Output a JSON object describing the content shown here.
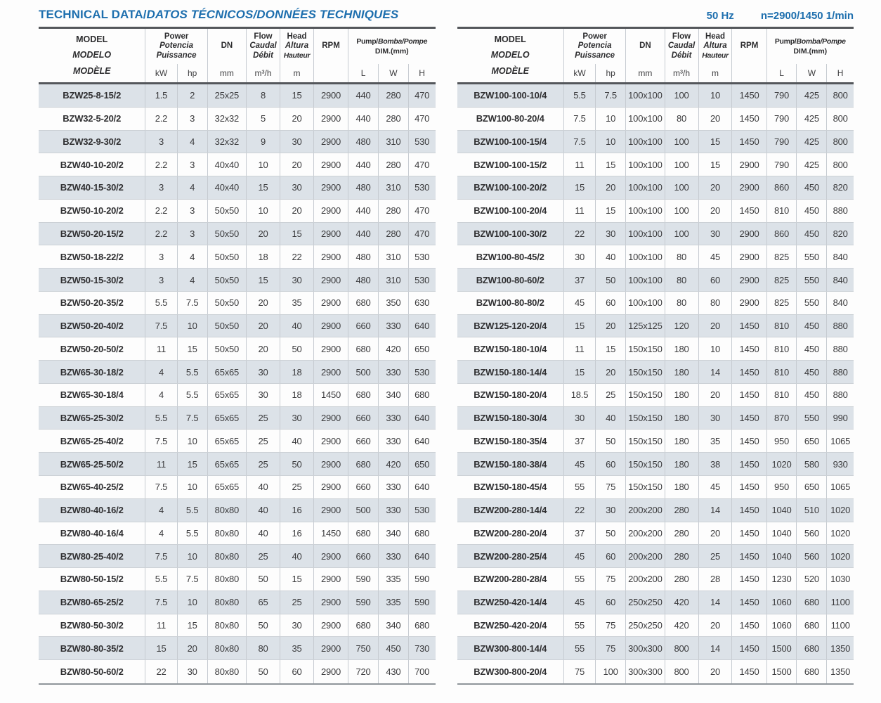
{
  "page": {
    "title_plain": "TECHNICAL DATA/",
    "title_italic": "DATOS TÉCNICOS/DONNÉES TECHNIQUES",
    "frequency": "50 Hz",
    "speed": "n=2900/1450 1/min"
  },
  "header": {
    "model": [
      "MODEL",
      "MODELO",
      "MODÈLE"
    ],
    "power": [
      "Power",
      "Potencia",
      "Puissance"
    ],
    "power_units": [
      "kW",
      "hp"
    ],
    "dn": "DN",
    "dn_unit": "mm",
    "flow": [
      "Flow",
      "Caudal",
      "Débit"
    ],
    "flow_unit": "m³/h",
    "head_col": [
      "Head",
      "Altura",
      "Hauteur"
    ],
    "head_unit": "m",
    "rpm": "RPM",
    "dim_plain": "Pump/",
    "dim_italic": "Bomba/Pompe",
    "dim_sub": "DIM.(mm)",
    "dim_units": [
      "L",
      "W",
      "H"
    ]
  },
  "colors": {
    "accent": "#1e6fae",
    "stripe": "#dce2e8"
  },
  "tables": {
    "left": {
      "rows": [
        [
          "BZW25-8-15/2",
          "1.5",
          "2",
          "25x25",
          "8",
          "15",
          "2900",
          "440",
          "280",
          "470"
        ],
        [
          "BZW32-5-20/2",
          "2.2",
          "3",
          "32x32",
          "5",
          "20",
          "2900",
          "440",
          "280",
          "470"
        ],
        [
          "BZW32-9-30/2",
          "3",
          "4",
          "32x32",
          "9",
          "30",
          "2900",
          "480",
          "310",
          "530"
        ],
        [
          "BZW40-10-20/2",
          "2.2",
          "3",
          "40x40",
          "10",
          "20",
          "2900",
          "440",
          "280",
          "470"
        ],
        [
          "BZW40-15-30/2",
          "3",
          "4",
          "40x40",
          "15",
          "30",
          "2900",
          "480",
          "310",
          "530"
        ],
        [
          "BZW50-10-20/2",
          "2.2",
          "3",
          "50x50",
          "10",
          "20",
          "2900",
          "440",
          "280",
          "470"
        ],
        [
          "BZW50-20-15/2",
          "2.2",
          "3",
          "50x50",
          "20",
          "15",
          "2900",
          "440",
          "280",
          "470"
        ],
        [
          "BZW50-18-22/2",
          "3",
          "4",
          "50x50",
          "18",
          "22",
          "2900",
          "480",
          "310",
          "530"
        ],
        [
          "BZW50-15-30/2",
          "3",
          "4",
          "50x50",
          "15",
          "30",
          "2900",
          "480",
          "310",
          "530"
        ],
        [
          "BZW50-20-35/2",
          "5.5",
          "7.5",
          "50x50",
          "20",
          "35",
          "2900",
          "680",
          "350",
          "630"
        ],
        [
          "BZW50-20-40/2",
          "7.5",
          "10",
          "50x50",
          "20",
          "40",
          "2900",
          "660",
          "330",
          "640"
        ],
        [
          "BZW50-20-50/2",
          "11",
          "15",
          "50x50",
          "20",
          "50",
          "2900",
          "680",
          "420",
          "650"
        ],
        [
          "BZW65-30-18/2",
          "4",
          "5.5",
          "65x65",
          "30",
          "18",
          "2900",
          "500",
          "330",
          "530"
        ],
        [
          "BZW65-30-18/4",
          "4",
          "5.5",
          "65x65",
          "30",
          "18",
          "1450",
          "680",
          "340",
          "680"
        ],
        [
          "BZW65-25-30/2",
          "5.5",
          "7.5",
          "65x65",
          "25",
          "30",
          "2900",
          "660",
          "330",
          "640"
        ],
        [
          "BZW65-25-40/2",
          "7.5",
          "10",
          "65x65",
          "25",
          "40",
          "2900",
          "660",
          "330",
          "640"
        ],
        [
          "BZW65-25-50/2",
          "11",
          "15",
          "65x65",
          "25",
          "50",
          "2900",
          "680",
          "420",
          "650"
        ],
        [
          "BZW65-40-25/2",
          "7.5",
          "10",
          "65x65",
          "40",
          "25",
          "2900",
          "660",
          "330",
          "640"
        ],
        [
          "BZW80-40-16/2",
          "4",
          "5.5",
          "80x80",
          "40",
          "16",
          "2900",
          "500",
          "330",
          "530"
        ],
        [
          "BZW80-40-16/4",
          "4",
          "5.5",
          "80x80",
          "40",
          "16",
          "1450",
          "680",
          "340",
          "680"
        ],
        [
          "BZW80-25-40/2",
          "7.5",
          "10",
          "80x80",
          "25",
          "40",
          "2900",
          "660",
          "330",
          "640"
        ],
        [
          "BZW80-50-15/2",
          "5.5",
          "7.5",
          "80x80",
          "50",
          "15",
          "2900",
          "590",
          "335",
          "590"
        ],
        [
          "BZW80-65-25/2",
          "7.5",
          "10",
          "80x80",
          "65",
          "25",
          "2900",
          "590",
          "335",
          "590"
        ],
        [
          "BZW80-50-30/2",
          "11",
          "15",
          "80x80",
          "50",
          "30",
          "2900",
          "680",
          "340",
          "680"
        ],
        [
          "BZW80-80-35/2",
          "15",
          "20",
          "80x80",
          "80",
          "35",
          "2900",
          "750",
          "450",
          "730"
        ],
        [
          "BZW80-50-60/2",
          "22",
          "30",
          "80x80",
          "50",
          "60",
          "2900",
          "720",
          "430",
          "700"
        ]
      ]
    },
    "right": {
      "rows": [
        [
          "BZW100-100-10/4",
          "5.5",
          "7.5",
          "100x100",
          "100",
          "10",
          "1450",
          "790",
          "425",
          "800"
        ],
        [
          "BZW100-80-20/4",
          "7.5",
          "10",
          "100x100",
          "80",
          "20",
          "1450",
          "790",
          "425",
          "800"
        ],
        [
          "BZW100-100-15/4",
          "7.5",
          "10",
          "100x100",
          "100",
          "15",
          "1450",
          "790",
          "425",
          "800"
        ],
        [
          "BZW100-100-15/2",
          "11",
          "15",
          "100x100",
          "100",
          "15",
          "2900",
          "790",
          "425",
          "800"
        ],
        [
          "BZW100-100-20/2",
          "15",
          "20",
          "100x100",
          "100",
          "20",
          "2900",
          "860",
          "450",
          "820"
        ],
        [
          "BZW100-100-20/4",
          "11",
          "15",
          "100x100",
          "100",
          "20",
          "1450",
          "810",
          "450",
          "880"
        ],
        [
          "BZW100-100-30/2",
          "22",
          "30",
          "100x100",
          "100",
          "30",
          "2900",
          "860",
          "450",
          "820"
        ],
        [
          "BZW100-80-45/2",
          "30",
          "40",
          "100x100",
          "80",
          "45",
          "2900",
          "825",
          "550",
          "840"
        ],
        [
          "BZW100-80-60/2",
          "37",
          "50",
          "100x100",
          "80",
          "60",
          "2900",
          "825",
          "550",
          "840"
        ],
        [
          "BZW100-80-80/2",
          "45",
          "60",
          "100x100",
          "80",
          "80",
          "2900",
          "825",
          "550",
          "840"
        ],
        [
          "BZW125-120-20/4",
          "15",
          "20",
          "125x125",
          "120",
          "20",
          "1450",
          "810",
          "450",
          "880"
        ],
        [
          "BZW150-180-10/4",
          "11",
          "15",
          "150x150",
          "180",
          "10",
          "1450",
          "810",
          "450",
          "880"
        ],
        [
          "BZW150-180-14/4",
          "15",
          "20",
          "150x150",
          "180",
          "14",
          "1450",
          "810",
          "450",
          "880"
        ],
        [
          "BZW150-180-20/4",
          "18.5",
          "25",
          "150x150",
          "180",
          "20",
          "1450",
          "810",
          "450",
          "880"
        ],
        [
          "BZW150-180-30/4",
          "30",
          "40",
          "150x150",
          "180",
          "30",
          "1450",
          "870",
          "550",
          "990"
        ],
        [
          "BZW150-180-35/4",
          "37",
          "50",
          "150x150",
          "180",
          "35",
          "1450",
          "950",
          "650",
          "1065"
        ],
        [
          "BZW150-180-38/4",
          "45",
          "60",
          "150x150",
          "180",
          "38",
          "1450",
          "1020",
          "580",
          "930"
        ],
        [
          "BZW150-180-45/4",
          "55",
          "75",
          "150x150",
          "180",
          "45",
          "1450",
          "950",
          "650",
          "1065"
        ],
        [
          "BZW200-280-14/4",
          "22",
          "30",
          "200x200",
          "280",
          "14",
          "1450",
          "1040",
          "510",
          "1020"
        ],
        [
          "BZW200-280-20/4",
          "37",
          "50",
          "200x200",
          "280",
          "20",
          "1450",
          "1040",
          "560",
          "1020"
        ],
        [
          "BZW200-280-25/4",
          "45",
          "60",
          "200x200",
          "280",
          "25",
          "1450",
          "1040",
          "560",
          "1020"
        ],
        [
          "BZW200-280-28/4",
          "55",
          "75",
          "200x200",
          "280",
          "28",
          "1450",
          "1230",
          "520",
          "1030"
        ],
        [
          "BZW250-420-14/4",
          "45",
          "60",
          "250x250",
          "420",
          "14",
          "1450",
          "1060",
          "680",
          "1100"
        ],
        [
          "BZW250-420-20/4",
          "55",
          "75",
          "250x250",
          "420",
          "20",
          "1450",
          "1060",
          "680",
          "1100"
        ],
        [
          "BZW300-800-14/4",
          "55",
          "75",
          "300x300",
          "800",
          "14",
          "1450",
          "1500",
          "680",
          "1350"
        ],
        [
          "BZW300-800-20/4",
          "75",
          "100",
          "300x300",
          "800",
          "20",
          "1450",
          "1500",
          "680",
          "1350"
        ]
      ]
    }
  }
}
